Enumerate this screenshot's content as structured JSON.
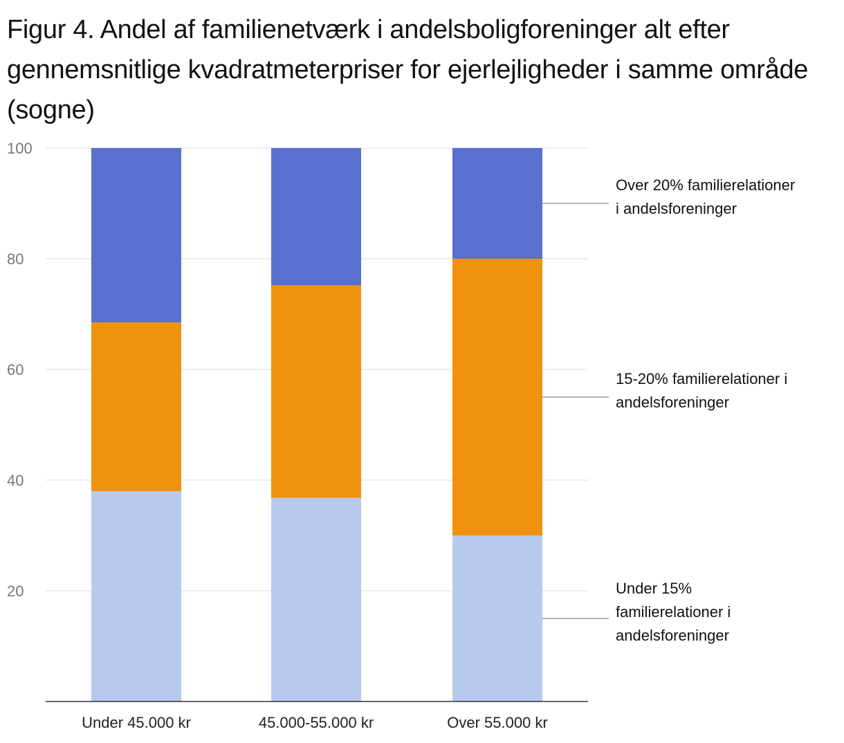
{
  "chart_data": {
    "type": "bar",
    "stacked": true,
    "title": "Figur 4. Andel af familienetværk i andelsboligforeninger alt efter gennemsnitlige kvadratmeterpriser for ejerlejligheder i samme område (sogne)",
    "categories": [
      "Under 45.000 kr",
      "45.000-55.000 kr",
      "Over 55.000 kr"
    ],
    "series": [
      {
        "name": "Under 15% familierelationer i andelsforeninger",
        "label_lines": [
          "Under 15%",
          "familierelationer i",
          "andelsforeninger"
        ],
        "color": "#b8c9ee",
        "values": [
          38,
          36.8,
          30
        ]
      },
      {
        "name": "15-20% familierelationer i andelsforeninger",
        "label_lines": [
          "15-20% familierelationer i",
          "andelsforeninger"
        ],
        "color": "#f0920e",
        "values": [
          30.5,
          38.4,
          50
        ]
      },
      {
        "name": "Over 20% familierelationer i andelsforeninger",
        "label_lines": [
          "Over 20% familierelationer",
          "i andelsforeninger"
        ],
        "color": "#5a70ce",
        "values": [
          31.5,
          24.8,
          20
        ]
      }
    ],
    "yticks": [
      20,
      40,
      60,
      80,
      100
    ],
    "ylim": [
      0,
      100
    ],
    "grid": true,
    "legend": "right (direct labels)"
  }
}
